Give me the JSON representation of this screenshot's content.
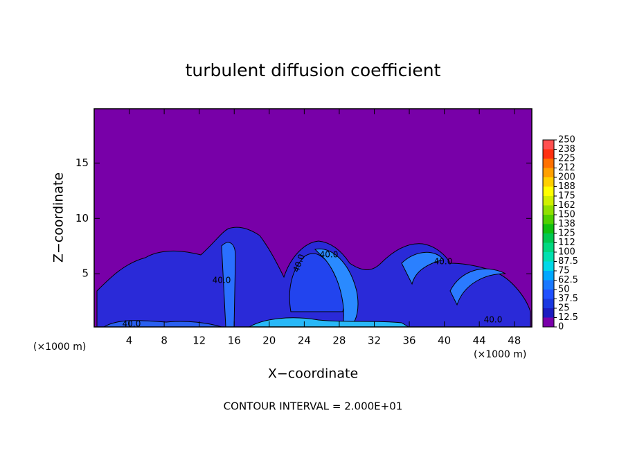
{
  "chart_data": {
    "type": "contour",
    "title": "turbulent diffusion coefficient",
    "xlabel": "X−coordinate",
    "ylabel": "Z−coordinate",
    "x_unit_labels": [
      "(×1000 m)",
      "(×1000 m)"
    ],
    "footer": "CONTOUR INTERVAL = 2.000E+01",
    "xlim": [
      0,
      50
    ],
    "ylim": [
      0.2,
      19.9
    ],
    "xticks": [
      4,
      8,
      12,
      16,
      20,
      24,
      28,
      32,
      36,
      40,
      44,
      48
    ],
    "yticks": [
      5,
      10,
      15
    ],
    "contour_labels": [
      "40.0",
      "40.0",
      "40.0",
      "40.0",
      "40.0",
      "40.0"
    ],
    "colorbar": {
      "levels": [
        0,
        12.5,
        25,
        37.5,
        50,
        62.5,
        75,
        87.5,
        100,
        112,
        125,
        138,
        150,
        162,
        175,
        188,
        200,
        212,
        225,
        238,
        250
      ],
      "colors": [
        "#7a00aa",
        "#1c1cc0",
        "#1a38e0",
        "#2050ff",
        "#1a78ff",
        "#00a8ff",
        "#00d8e8",
        "#00e0b0",
        "#00d880",
        "#00c850",
        "#10c010",
        "#50d000",
        "#90e000",
        "#d0f000",
        "#ffff00",
        "#ffd000",
        "#ffa000",
        "#ff7000",
        "#ff3010",
        "#ff5050"
      ]
    }
  }
}
